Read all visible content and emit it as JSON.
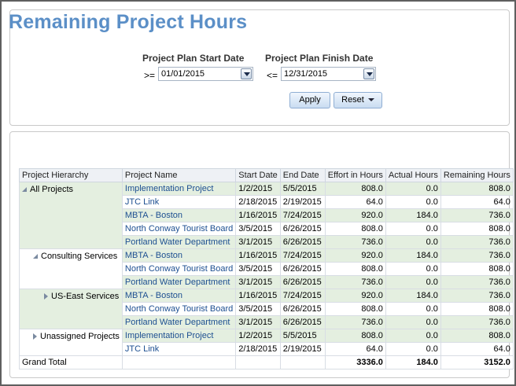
{
  "title": "Remaining Project Hours",
  "prompts": {
    "start": {
      "label": "Project Plan Start Date",
      "operator": ">=",
      "value": "01/01/2015"
    },
    "finish": {
      "label": "Project Plan Finish Date",
      "operator": "<=",
      "value": "12/31/2015"
    },
    "apply_label": "Apply",
    "reset_label": "Reset"
  },
  "table": {
    "headers": [
      "Project Hierarchy",
      "Project Name",
      "Start Date",
      "End Date",
      "Effort in Hours",
      "Actual Hours",
      "Remaining Hours"
    ],
    "groups": [
      {
        "label": "All Projects",
        "icon": "collapse-icon",
        "indent": 0,
        "rows": [
          [
            "Implementation Project",
            "1/2/2015",
            "5/5/2015",
            "808.0",
            "0.0",
            "808.0"
          ],
          [
            "JTC Link",
            "2/18/2015",
            "2/19/2015",
            "64.0",
            "0.0",
            "64.0"
          ],
          [
            "MBTA - Boston",
            "1/16/2015",
            "7/24/2015",
            "920.0",
            "184.0",
            "736.0"
          ],
          [
            "North Conway Tourist Board",
            "3/5/2015",
            "6/26/2015",
            "808.0",
            "0.0",
            "808.0"
          ],
          [
            "Portland Water Department",
            "3/1/2015",
            "6/26/2015",
            "736.0",
            "0.0",
            "736.0"
          ]
        ]
      },
      {
        "label": "Consulting Services",
        "icon": "collapse-icon",
        "indent": 1,
        "rows": [
          [
            "MBTA - Boston",
            "1/16/2015",
            "7/24/2015",
            "920.0",
            "184.0",
            "736.0"
          ],
          [
            "North Conway Tourist Board",
            "3/5/2015",
            "6/26/2015",
            "808.0",
            "0.0",
            "808.0"
          ],
          [
            "Portland Water Department",
            "3/1/2015",
            "6/26/2015",
            "736.0",
            "0.0",
            "736.0"
          ]
        ]
      },
      {
        "label": "US-East Services",
        "icon": "expand-icon",
        "indent": 2,
        "rows": [
          [
            "MBTA - Boston",
            "1/16/2015",
            "7/24/2015",
            "920.0",
            "184.0",
            "736.0"
          ],
          [
            "North Conway Tourist Board",
            "3/5/2015",
            "6/26/2015",
            "808.0",
            "0.0",
            "808.0"
          ],
          [
            "Portland Water Department",
            "3/1/2015",
            "6/26/2015",
            "736.0",
            "0.0",
            "736.0"
          ]
        ]
      },
      {
        "label": "Unassigned Projects",
        "icon": "expand-icon",
        "indent": 1,
        "rows": [
          [
            "Implementation Project",
            "1/2/2015",
            "5/5/2015",
            "808.0",
            "0.0",
            "808.0"
          ],
          [
            "JTC Link",
            "2/18/2015",
            "2/19/2015",
            "64.0",
            "0.0",
            "64.0"
          ]
        ]
      }
    ],
    "grand_total": {
      "label": "Grand Total",
      "effort": "3336.0",
      "actual": "184.0",
      "remaining": "3152.0"
    }
  },
  "colors": {
    "title": "#5b8fc7",
    "link": "#1d4f91",
    "band": "#e4efe0",
    "header": "#eef1f5"
  }
}
